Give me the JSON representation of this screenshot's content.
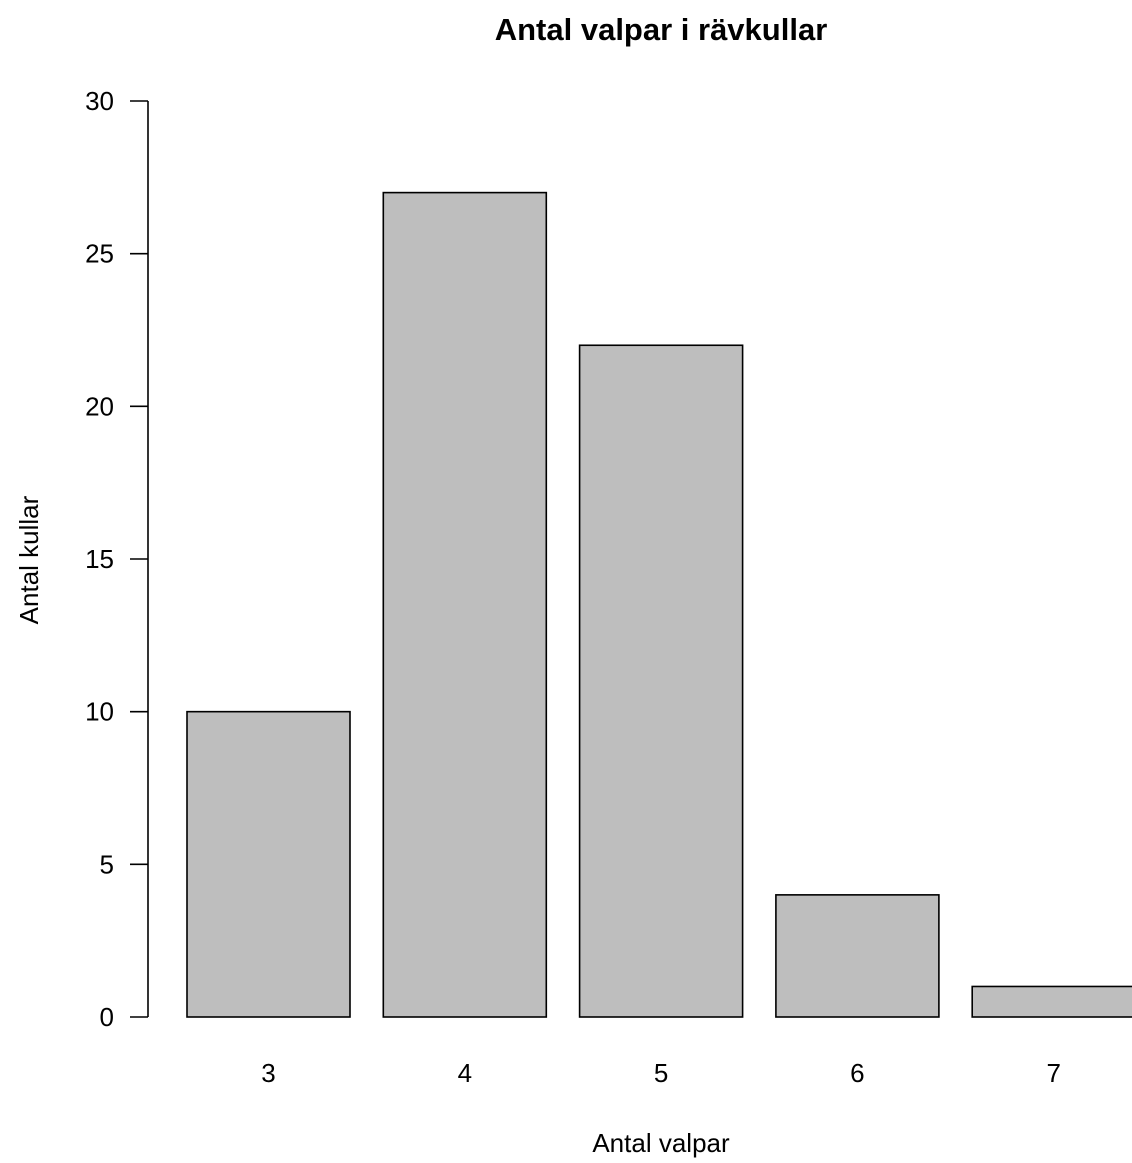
{
  "chart_data": {
    "type": "bar",
    "title": "Antal valpar i rävkullar",
    "xlabel": "Antal valpar",
    "ylabel": "Antal kullar",
    "categories": [
      "3",
      "4",
      "5",
      "6",
      "7"
    ],
    "values": [
      10,
      27,
      22,
      4,
      1
    ],
    "ylim": [
      0,
      30
    ],
    "yticks": [
      "0",
      "5",
      "10",
      "15",
      "20",
      "25",
      "30"
    ],
    "grid": false,
    "legend": "none",
    "colors": {
      "bar_fill": "#bebebe",
      "bar_stroke": "#000000",
      "axis": "#000000"
    }
  }
}
